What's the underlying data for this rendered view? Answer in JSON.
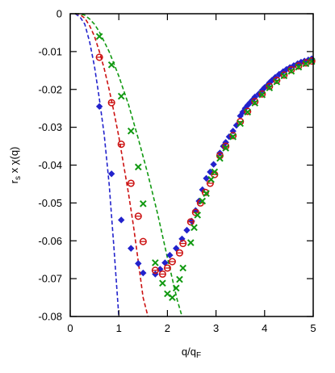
{
  "chart_data": {
    "type": "scatter",
    "xlabel": "q/q",
    "xlabel_sub": "F",
    "ylabel_pre": "r",
    "ylabel_sub": "s",
    "ylabel_post": " x χ(q)",
    "xlim": [
      0,
      5
    ],
    "ylim": [
      -0.08,
      0
    ],
    "x_ticks": [
      0,
      1,
      2,
      3,
      4,
      5
    ],
    "x_tick_labels": [
      "0",
      "1",
      "2",
      "3",
      "4",
      "5"
    ],
    "y_ticks": [
      0,
      -0.01,
      -0.02,
      -0.03,
      -0.04,
      -0.05,
      -0.06,
      -0.07,
      -0.08
    ],
    "y_tick_labels": [
      "0",
      "-0.01",
      "-0.02",
      "-0.03",
      "-0.04",
      "-0.05",
      "-0.06",
      "-0.07",
      "-0.08"
    ],
    "grid": false,
    "series": [
      {
        "marker": "diamond",
        "color": "#2222cc",
        "points": [
          [
            0.6,
            -0.0245
          ],
          [
            0.85,
            -0.0423
          ],
          [
            1.05,
            -0.0545
          ],
          [
            1.25,
            -0.062
          ],
          [
            1.4,
            -0.066
          ],
          [
            1.5,
            -0.0685
          ],
          [
            1.75,
            -0.0688
          ],
          [
            1.85,
            -0.0675
          ],
          [
            1.95,
            -0.0658
          ],
          [
            2.05,
            -0.0638
          ],
          [
            2.18,
            -0.062
          ],
          [
            2.3,
            -0.0595
          ],
          [
            2.4,
            -0.0572
          ],
          [
            2.5,
            -0.0548
          ],
          [
            2.58,
            -0.052
          ],
          [
            2.65,
            -0.0495
          ],
          [
            2.72,
            -0.0465
          ],
          [
            2.8,
            -0.0435
          ],
          [
            2.88,
            -0.0418
          ],
          [
            2.95,
            -0.0398
          ],
          [
            3.08,
            -0.0368
          ],
          [
            3.15,
            -0.035
          ],
          [
            3.2,
            -0.034
          ],
          [
            3.27,
            -0.0325
          ],
          [
            3.35,
            -0.031
          ],
          [
            3.42,
            -0.0295
          ],
          [
            3.5,
            -0.027
          ],
          [
            3.55,
            -0.026
          ],
          [
            3.6,
            -0.025
          ],
          [
            3.65,
            -0.0242
          ],
          [
            3.7,
            -0.0235
          ],
          [
            3.75,
            -0.0228
          ],
          [
            3.8,
            -0.022
          ],
          [
            3.88,
            -0.0212
          ],
          [
            3.95,
            -0.0202
          ],
          [
            4.0,
            -0.0195
          ],
          [
            4.05,
            -0.019
          ],
          [
            4.1,
            -0.0182
          ],
          [
            4.15,
            -0.0176
          ],
          [
            4.22,
            -0.0168
          ],
          [
            4.3,
            -0.016
          ],
          [
            4.38,
            -0.0153
          ],
          [
            4.45,
            -0.0147
          ],
          [
            4.52,
            -0.0142
          ],
          [
            4.6,
            -0.0137
          ],
          [
            4.68,
            -0.0132
          ],
          [
            4.75,
            -0.0128
          ],
          [
            4.82,
            -0.0125
          ],
          [
            4.9,
            -0.0122
          ],
          [
            4.97,
            -0.0119
          ]
        ]
      },
      {
        "marker": "circle",
        "color": "#cc1111",
        "points": [
          [
            0.6,
            -0.0115
          ],
          [
            0.85,
            -0.0235
          ],
          [
            1.05,
            -0.0345
          ],
          [
            1.25,
            -0.0448
          ],
          [
            1.4,
            -0.0535
          ],
          [
            1.5,
            -0.0602
          ],
          [
            1.75,
            -0.0678
          ],
          [
            1.9,
            -0.0688
          ],
          [
            2.0,
            -0.0672
          ],
          [
            2.1,
            -0.0655
          ],
          [
            2.25,
            -0.0632
          ],
          [
            2.32,
            -0.0607
          ],
          [
            2.48,
            -0.055
          ],
          [
            2.58,
            -0.0525
          ],
          [
            2.68,
            -0.05
          ],
          [
            2.78,
            -0.0472
          ],
          [
            2.88,
            -0.0448
          ],
          [
            2.97,
            -0.0425
          ],
          [
            3.08,
            -0.0375
          ],
          [
            3.2,
            -0.035
          ],
          [
            3.35,
            -0.0322
          ],
          [
            3.5,
            -0.0285
          ],
          [
            3.65,
            -0.0258
          ],
          [
            3.8,
            -0.0232
          ],
          [
            3.95,
            -0.0212
          ],
          [
            4.1,
            -0.0192
          ],
          [
            4.25,
            -0.0176
          ],
          [
            4.4,
            -0.0162
          ],
          [
            4.55,
            -0.0148
          ],
          [
            4.7,
            -0.0138
          ],
          [
            4.85,
            -0.013
          ],
          [
            4.97,
            -0.0125
          ]
        ]
      },
      {
        "marker": "x",
        "color": "#119911",
        "points": [
          [
            0.6,
            -0.006
          ],
          [
            0.85,
            -0.0135
          ],
          [
            1.05,
            -0.0218
          ],
          [
            1.25,
            -0.031
          ],
          [
            1.4,
            -0.0405
          ],
          [
            1.5,
            -0.0502
          ],
          [
            1.75,
            -0.0658
          ],
          [
            1.9,
            -0.0712
          ],
          [
            2.0,
            -0.074
          ],
          [
            2.1,
            -0.075
          ],
          [
            2.18,
            -0.0725
          ],
          [
            2.25,
            -0.0702
          ],
          [
            2.32,
            -0.0672
          ],
          [
            2.48,
            -0.0605
          ],
          [
            2.55,
            -0.0565
          ],
          [
            2.62,
            -0.0532
          ],
          [
            2.72,
            -0.0495
          ],
          [
            2.8,
            -0.0475
          ],
          [
            2.9,
            -0.0438
          ],
          [
            2.97,
            -0.0418
          ],
          [
            3.08,
            -0.0382
          ],
          [
            3.2,
            -0.0355
          ],
          [
            3.35,
            -0.0325
          ],
          [
            3.5,
            -0.029
          ],
          [
            3.65,
            -0.026
          ],
          [
            3.8,
            -0.0236
          ],
          [
            3.95,
            -0.0214
          ],
          [
            4.1,
            -0.0196
          ],
          [
            4.25,
            -0.018
          ],
          [
            4.4,
            -0.0164
          ],
          [
            4.55,
            -0.0152
          ],
          [
            4.7,
            -0.0141
          ],
          [
            4.85,
            -0.0132
          ],
          [
            4.97,
            -0.0126
          ]
        ]
      }
    ],
    "curves": [
      {
        "style": "dashed",
        "color": "#2222cc",
        "points": [
          [
            0.1,
            0
          ],
          [
            0.2,
            -0.0008
          ],
          [
            0.3,
            -0.0028
          ],
          [
            0.4,
            -0.0075
          ],
          [
            0.5,
            -0.014
          ],
          [
            0.6,
            -0.0225
          ],
          [
            0.7,
            -0.032
          ],
          [
            0.8,
            -0.045
          ],
          [
            0.9,
            -0.062
          ],
          [
            1.0,
            -0.08
          ]
        ]
      },
      {
        "style": "dashed",
        "color": "#cc1111",
        "points": [
          [
            0.1,
            0
          ],
          [
            0.2,
            -0.0002
          ],
          [
            0.3,
            -0.0012
          ],
          [
            0.4,
            -0.0032
          ],
          [
            0.5,
            -0.006
          ],
          [
            0.6,
            -0.01
          ],
          [
            0.7,
            -0.0145
          ],
          [
            0.8,
            -0.02
          ],
          [
            0.9,
            -0.026
          ],
          [
            1.0,
            -0.0325
          ],
          [
            1.1,
            -0.04
          ],
          [
            1.2,
            -0.0475
          ],
          [
            1.3,
            -0.056
          ],
          [
            1.4,
            -0.0655
          ],
          [
            1.5,
            -0.075
          ],
          [
            1.6,
            -0.08
          ]
        ]
      },
      {
        "style": "dashed",
        "color": "#119911",
        "points": [
          [
            0.1,
            0
          ],
          [
            0.2,
            0
          ],
          [
            0.3,
            -0.0004
          ],
          [
            0.4,
            -0.0014
          ],
          [
            0.5,
            -0.0028
          ],
          [
            0.6,
            -0.0048
          ],
          [
            0.8,
            -0.01
          ],
          [
            1.0,
            -0.0165
          ],
          [
            1.2,
            -0.024
          ],
          [
            1.4,
            -0.033
          ],
          [
            1.6,
            -0.0425
          ],
          [
            1.8,
            -0.053
          ],
          [
            2.0,
            -0.0645
          ],
          [
            2.2,
            -0.0755
          ],
          [
            2.3,
            -0.08
          ]
        ]
      }
    ]
  }
}
